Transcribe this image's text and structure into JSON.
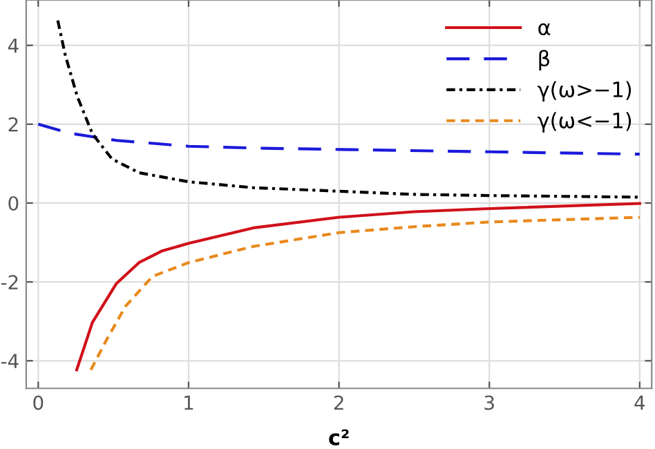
{
  "chart_data": {
    "type": "line",
    "xlabel": "c²",
    "xlim": [
      -0.08,
      4.08
    ],
    "ylim": [
      -4.7,
      5.15
    ],
    "xticks": [
      0,
      1,
      2,
      3,
      4
    ],
    "yticks": [
      -4,
      -2,
      0,
      2,
      4
    ],
    "grid": true,
    "legend": "top right",
    "marker": "none",
    "series": [
      {
        "name": "α",
        "color": "#d0101a",
        "line_style": "solid",
        "x": [
          0.256,
          0.36,
          0.52,
          0.67,
          0.82,
          1.0,
          1.43,
          2.0,
          2.5,
          3.0,
          4.0
        ],
        "values": [
          -4.23,
          -3.03,
          -2.04,
          -1.51,
          -1.22,
          -1.02,
          -0.63,
          -0.36,
          -0.22,
          -0.14,
          -0.01
        ]
      },
      {
        "name": "β",
        "color": "#1a1adb",
        "line_style": "long_dashed",
        "x": [
          0.0,
          0.21,
          0.52,
          1.0,
          1.5,
          2.0,
          3.0,
          4.0
        ],
        "values": [
          2.0,
          1.77,
          1.59,
          1.44,
          1.39,
          1.36,
          1.3,
          1.24
        ]
      },
      {
        "name": "γ(ω>−1)",
        "color": "#000000",
        "line_style": "dashdot",
        "x": [
          0.13,
          0.18,
          0.26,
          0.36,
          0.49,
          0.67,
          1.0,
          1.43,
          2.0,
          2.5,
          3.0,
          4.0
        ],
        "values": [
          4.63,
          3.75,
          2.7,
          1.76,
          1.12,
          0.77,
          0.54,
          0.39,
          0.3,
          0.22,
          0.19,
          0.15
        ]
      },
      {
        "name": "γ(ω<−1)",
        "color": "#e8891c",
        "line_style": "dashed",
        "x": [
          0.35,
          0.45,
          0.58,
          0.76,
          1.0,
          1.43,
          2.0,
          2.5,
          3.0,
          4.0
        ],
        "values": [
          -4.23,
          -3.5,
          -2.62,
          -1.86,
          -1.51,
          -1.1,
          -0.75,
          -0.6,
          -0.48,
          -0.36
        ]
      }
    ]
  }
}
